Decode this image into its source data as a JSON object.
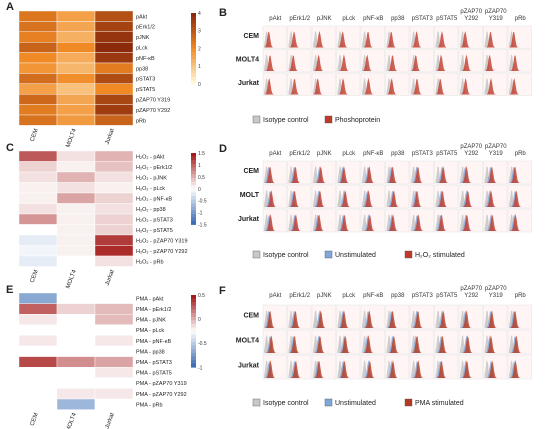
{
  "panels": {
    "A": {
      "letter": "A",
      "rows": [
        "pAkt",
        "pErk1/2",
        "pJNK",
        "pLck",
        "pNF-κB",
        "pp38",
        "pSTAT3",
        "pSTAT5",
        "pZAP70 Y319",
        "pZAP70 Y292",
        "pRb"
      ],
      "cols": [
        "CEM",
        "MOLT4",
        "Jurkat"
      ],
      "colorbar_ticks": [
        "4",
        "3",
        "2",
        "1",
        "0"
      ],
      "values": [
        [
          2.4,
          1.6,
          3.2
        ],
        [
          2.5,
          1.5,
          3.5
        ],
        [
          2.2,
          1.3,
          3.8
        ],
        [
          2.8,
          2.0,
          4.0
        ],
        [
          2.0,
          1.4,
          3.7
        ],
        [
          1.8,
          1.2,
          2.3
        ],
        [
          2.6,
          1.9,
          3.3
        ],
        [
          1.6,
          1.0,
          2.0
        ],
        [
          2.7,
          1.5,
          3.4
        ],
        [
          2.3,
          1.6,
          3.6
        ],
        [
          2.5,
          1.7,
          2.8
        ]
      ]
    },
    "C": {
      "letter": "C",
      "rows": [
        "H₂O₂ - pAkt",
        "H₂O₂ - pErk1/2",
        "H₂O₂ - pJNK",
        "H₂O₂ - pLck",
        "H₂O₂ - pNF-κB",
        "H₂O₂ - pp38",
        "H₂O₂ - pSTAT3",
        "H₂O₂ - pSTAT5",
        "H₂O₂ - pZAP70 Y319",
        "H₂O₂ - pZAP70 Y292",
        "H₂O₂ - pRb"
      ],
      "cols": [
        "CEM",
        "MOLT4",
        "Jurkat"
      ],
      "colorbar_ticks": [
        "1.5",
        "1",
        "0.5",
        "0",
        "-0.5",
        "-1",
        "-1.5"
      ],
      "values": [
        [
          1.1,
          0.2,
          0.5
        ],
        [
          0.3,
          0.1,
          0.4
        ],
        [
          0.2,
          0.5,
          0.2
        ],
        [
          0.1,
          0.2,
          0.1
        ],
        [
          0.1,
          0.6,
          0.3
        ],
        [
          0.2,
          0.1,
          0.2
        ],
        [
          0.7,
          0.1,
          0.3
        ],
        [
          0.0,
          0.1,
          0.3
        ],
        [
          -0.2,
          0.1,
          1.3
        ],
        [
          -0.1,
          0.1,
          1.4
        ],
        [
          -0.2,
          0.0,
          0.2
        ]
      ]
    },
    "E": {
      "letter": "E",
      "rows": [
        "PMA - pAkt",
        "PMA - pErk1/2",
        "PMA - pJNK",
        "PMA - pLck",
        "PMA - pNF-κB",
        "PMA - pp38",
        "PMA - pSTAT3",
        "PMA - pSTAT5",
        "PMA - pZAP70 Y319",
        "PMA - pZAP70 Y292",
        "PMA - pRb"
      ],
      "cols": [
        "CEM",
        "MOLT4",
        "Jurkat"
      ],
      "colorbar_ticks": [
        "0.5",
        "0",
        "-0.5",
        "-1"
      ],
      "values": [
        [
          -0.6,
          0.0,
          0.0
        ],
        [
          0.7,
          0.2,
          0.3
        ],
        [
          0.1,
          0.0,
          0.3
        ],
        [
          0.0,
          0.0,
          0.0
        ],
        [
          0.1,
          0.0,
          0.1
        ],
        [
          0.0,
          0.0,
          0.0
        ],
        [
          0.8,
          0.5,
          0.4
        ],
        [
          0.0,
          0.0,
          0.1
        ],
        [
          0.0,
          0.0,
          0.0
        ],
        [
          0.0,
          0.1,
          0.1
        ],
        [
          0.0,
          -0.5,
          0.0
        ]
      ]
    },
    "B": {
      "letter": "B",
      "cols": [
        "pAkt",
        "pErk1/2",
        "pJNK",
        "pLck",
        "pNF-κB",
        "pp38",
        "pSTAT3",
        "pSTAT5",
        "pZAP70 Y292",
        "pZAP70 Y319",
        "pRb"
      ],
      "rows": [
        "CEM",
        "MOLT4",
        "Jurkat"
      ],
      "legend": [
        "Isotype control",
        "Phoshoprotein"
      ]
    },
    "D": {
      "letter": "D",
      "cols": [
        "pAkt",
        "pErk1/2",
        "pJNK",
        "pLck",
        "pNF-κB",
        "pp38",
        "pSTAT3",
        "pSTAT5",
        "pZAP70 Y292",
        "pZAP70 Y319",
        "pRb"
      ],
      "rows": [
        "CEM",
        "MOLT",
        "Jurkat"
      ],
      "legend": [
        "Isotype control",
        "Unstimulated",
        "H₂O₂ stimulated"
      ]
    },
    "F": {
      "letter": "F",
      "cols": [
        "pAkt",
        "pErk1/2",
        "pJNK",
        "pLck",
        "pNF-κB",
        "pp38",
        "pSTAT3",
        "pSTAT5",
        "pZAP70 Y292",
        "pZAP70 Y319",
        "pRb"
      ],
      "rows": [
        "CEM",
        "MOLT4",
        "Jurkat"
      ],
      "legend": [
        "Isotype control",
        "Unstimulated",
        "PMA stimulated"
      ]
    }
  },
  "colors": {
    "isotype": "#c8c8c8",
    "phospho": "#c0392b",
    "unstim": "#7fa7dc",
    "h2o2": "#c0392b",
    "pma": "#b5391f",
    "grid_bg": "#fff5f5",
    "grid_line": "#ddd"
  }
}
